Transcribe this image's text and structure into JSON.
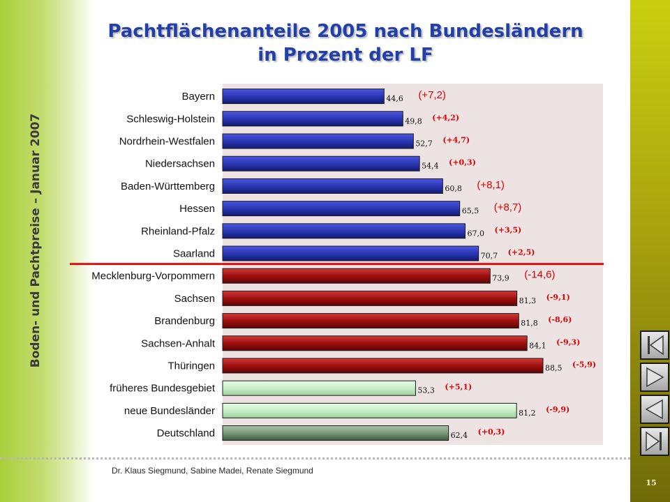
{
  "side_title": "Boden- und Pachtpreise – Januar 2007",
  "title_line1": "Pachtflächenanteile 2005 nach Bundesländern",
  "title_line2": "in Prozent der LF",
  "authors": "Dr. Klaus Siegmund, Sabine Madei, Renate Siegmund",
  "page_number": "15",
  "colors": {
    "west": "#2b37b3",
    "east": "#a01010",
    "aggregate": "#c6efc6",
    "germany": "#7a9a7a",
    "plot_bg": "#ede3e3",
    "change_text": "#dd0000",
    "divider": "#e01010"
  },
  "nav_buttons": [
    {
      "name": "first-slide-button",
      "icon": "first-icon"
    },
    {
      "name": "next-slide-button",
      "icon": "play-forward-icon"
    },
    {
      "name": "previous-slide-button",
      "icon": "play-back-icon"
    },
    {
      "name": "last-slide-button",
      "icon": "last-icon"
    }
  ],
  "chart_data": {
    "type": "bar",
    "orientation": "horizontal",
    "title": "Pachtflächenanteile 2005 nach Bundesländern in Prozent der LF",
    "xlim": [
      0,
      100
    ],
    "grid": false,
    "categories": [
      "Bayern",
      "Schleswig-Holstein",
      "Nordrhein-Westfalen",
      "Niedersachsen",
      "Baden-Württemberg",
      "Hessen",
      "Rheinland-Pfalz",
      "Saarland",
      "Mecklenburg-Vorpommern",
      "Sachsen",
      "Brandenburg",
      "Sachsen-Anhalt",
      "Thüringen",
      "früheres Bundesgebiet",
      "neue Bundesländer",
      "Deutschland"
    ],
    "values": [
      44.6,
      49.8,
      52.7,
      54.4,
      60.8,
      65.5,
      67.0,
      70.7,
      73.9,
      81.3,
      81.8,
      84.1,
      88.5,
      53.3,
      81.2,
      62.4
    ],
    "value_labels": [
      "44,6",
      "49,8",
      "52,7",
      "54,4",
      "60,8",
      "65,5",
      "67,0",
      "70,7",
      "73,9",
      "81,3",
      "81,8",
      "84,1",
      "88,5",
      "53,3",
      "81,2",
      "62,4"
    ],
    "change_labels": [
      "(+7,2)",
      "(+4,2)",
      "(+4,7)",
      "(+0,3)",
      "(+8,1)",
      "(+8,7)",
      "(+3,5)",
      "(+2,5)",
      "(-14,6)",
      "(-9,1)",
      "(-8,6)",
      "(-9,3)",
      "(-5,9)",
      "(+5,1)",
      "(-9,9)",
      "(+0,3)"
    ],
    "change_emphasis": [
      "large",
      "small",
      "small",
      "small",
      "large",
      "large",
      "small",
      "small",
      "large",
      "small",
      "small",
      "small",
      "small",
      "small",
      "small",
      "small"
    ],
    "groups": [
      "west",
      "west",
      "west",
      "west",
      "west",
      "west",
      "west",
      "west",
      "east",
      "east",
      "east",
      "east",
      "east",
      "aggregate",
      "aggregate",
      "germany"
    ]
  }
}
